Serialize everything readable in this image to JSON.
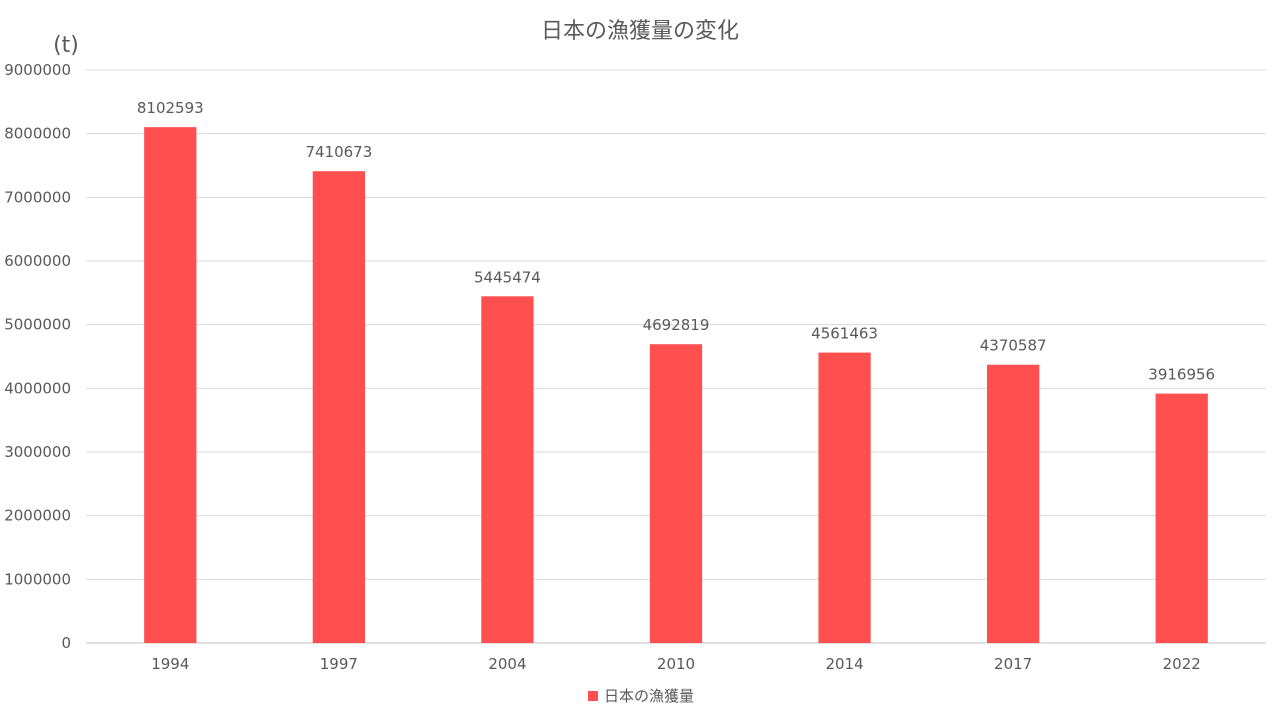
{
  "chart_data": {
    "type": "bar",
    "title": "日本の漁獲量の変化",
    "ylabel": "(t)",
    "xlabel": "",
    "categories": [
      "1994",
      "1997",
      "2004",
      "2010",
      "2014",
      "2017",
      "2022"
    ],
    "series": [
      {
        "name": "日本の漁獲量",
        "values": [
          8102593,
          7410673,
          5445474,
          4692819,
          4561463,
          4370587,
          3916956
        ],
        "color": "#ff4f4f"
      }
    ],
    "ylim": [
      0,
      9000000
    ],
    "yticks": [
      "0",
      "1000000",
      "2000000",
      "3000000",
      "4000000",
      "5000000",
      "6000000",
      "7000000",
      "8000000",
      "9000000"
    ],
    "grid": true,
    "legend": "bottom",
    "data_labels": true
  }
}
